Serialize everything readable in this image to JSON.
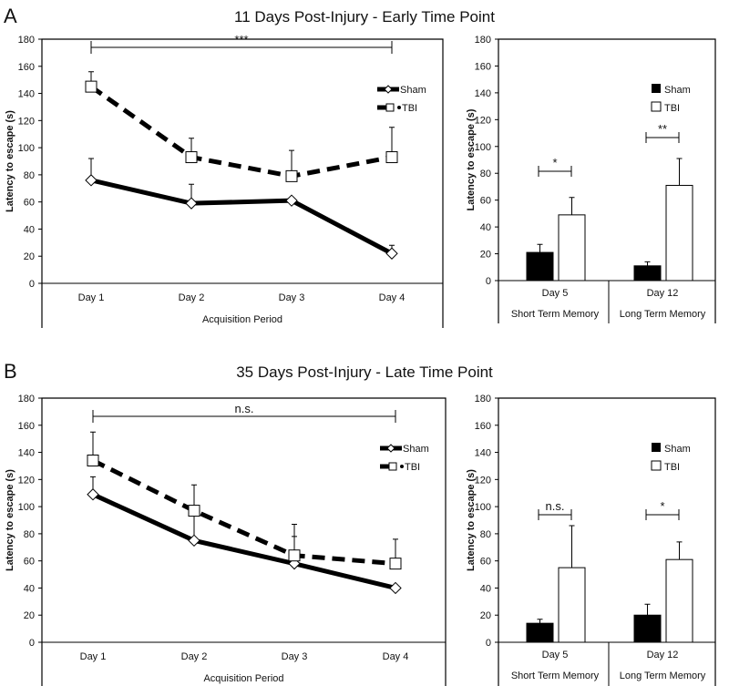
{
  "chart_data": [
    {
      "panel": "A",
      "title": "11 Days Post-Injury - Early Time Point",
      "charts": [
        {
          "type": "line",
          "xlabel": "Acquisition Period",
          "ylabel": "Latency to escape (s)",
          "ylim": [
            0,
            180
          ],
          "yticks": [
            0,
            20,
            40,
            60,
            80,
            100,
            120,
            140,
            160,
            180
          ],
          "categories": [
            "Day 1",
            "Day 2",
            "Day 3",
            "Day 4"
          ],
          "series": [
            {
              "name": "Sham",
              "values": [
                76,
                59,
                61,
                22
              ],
              "err_top": [
                92,
                73,
                61,
                28
              ]
            },
            {
              "name": "TBI",
              "values": [
                145,
                93,
                79,
                93
              ],
              "err_top": [
                156,
                107,
                98,
                115
              ]
            }
          ],
          "legend": [
            "Sham",
            "TBI"
          ],
          "legend_position": "top-right",
          "annotation": "***"
        },
        {
          "type": "bar",
          "ylabel": "Latency to escape (s)",
          "ylim": [
            0,
            180
          ],
          "yticks": [
            0,
            20,
            40,
            60,
            80,
            100,
            120,
            140,
            160,
            180
          ],
          "categories": [
            "Day 5",
            "Day 12"
          ],
          "sublabels": [
            "Short Term Memory",
            "Long Term Memory"
          ],
          "series": [
            {
              "name": "Sham",
              "values": [
                21,
                11
              ],
              "err_top": [
                27,
                14
              ]
            },
            {
              "name": "TBI",
              "values": [
                49,
                71
              ],
              "err_top": [
                62,
                91
              ]
            }
          ],
          "legend": [
            "Sham",
            "TBI"
          ],
          "legend_position": "top-right",
          "annotations": [
            "*",
            "**"
          ]
        }
      ]
    },
    {
      "panel": "B",
      "title": "35 Days Post-Injury - Late Time Point",
      "charts": [
        {
          "type": "line",
          "xlabel": "Acquisition Period",
          "ylabel": "Latency to escape (s)",
          "ylim": [
            0,
            180
          ],
          "yticks": [
            0,
            20,
            40,
            60,
            80,
            100,
            120,
            140,
            160,
            180
          ],
          "categories": [
            "Day 1",
            "Day 2",
            "Day 3",
            "Day 4"
          ],
          "series": [
            {
              "name": "Sham",
              "values": [
                109,
                75,
                58,
                40
              ],
              "err_top": [
                122,
                93,
                78,
                40
              ]
            },
            {
              "name": "TBI",
              "values": [
                134,
                97,
                64,
                58
              ],
              "err_top": [
                155,
                116,
                87,
                76
              ]
            }
          ],
          "legend": [
            "Sham",
            "TBI"
          ],
          "legend_position": "top-right",
          "annotation": "n.s."
        },
        {
          "type": "bar",
          "ylabel": "Latency to escape (s)",
          "ylim": [
            0,
            180
          ],
          "yticks": [
            0,
            20,
            40,
            60,
            80,
            100,
            120,
            140,
            160,
            180
          ],
          "categories": [
            "Day 5",
            "Day 12"
          ],
          "sublabels": [
            "Short Term Memory",
            "Long Term Memory"
          ],
          "series": [
            {
              "name": "Sham",
              "values": [
                14,
                20
              ],
              "err_top": [
                17,
                28
              ]
            },
            {
              "name": "TBI",
              "values": [
                55,
                61
              ],
              "err_top": [
                86,
                74
              ]
            }
          ],
          "legend": [
            "Sham",
            "TBI"
          ],
          "legend_position": "top-right",
          "annotations": [
            "n.s.",
            "*"
          ]
        }
      ]
    }
  ]
}
